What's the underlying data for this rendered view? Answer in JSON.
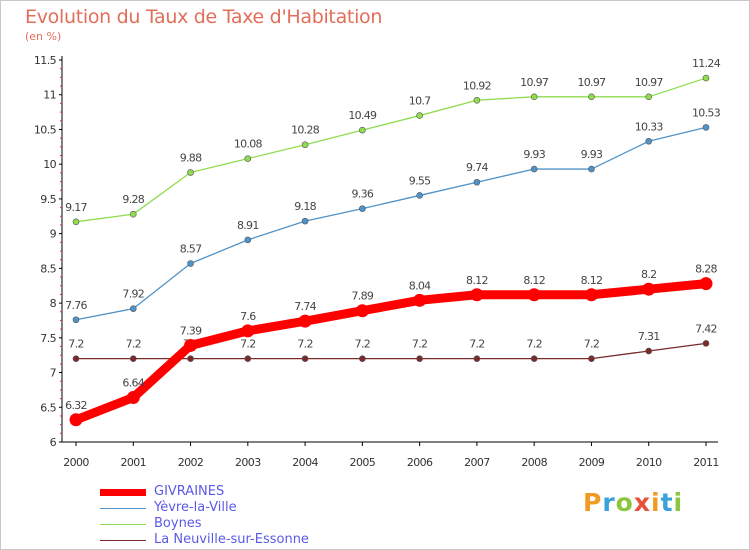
{
  "header": {
    "title": "Evolution du Taux de Taxe d'Habitation",
    "subtitle": "(en %)"
  },
  "brand": {
    "text": "Proxiti",
    "colors": [
      "#f29b24",
      "#3ba1d9",
      "#8cc63f",
      "#e84e3a",
      "#f29b24",
      "#3ba1d9",
      "#8cc63f"
    ]
  },
  "chart_data": {
    "type": "line",
    "x": [
      "2000",
      "2001",
      "2002",
      "2003",
      "2004",
      "2005",
      "2006",
      "2007",
      "2008",
      "2009",
      "2010",
      "2011"
    ],
    "ylim": [
      6,
      11.5
    ],
    "yticks": [
      "6",
      "6.5",
      "7",
      "7.5",
      "8",
      "8.5",
      "9",
      "9.5",
      "10",
      "10.5",
      "11",
      "11.5"
    ],
    "grid": false,
    "legend_position": "bottom-left",
    "series": [
      {
        "name": "GIVRAINES",
        "color": "#ff0000",
        "emphasis": true,
        "values": [
          6.32,
          6.64,
          7.39,
          7.6,
          7.74,
          7.89,
          8.04,
          8.12,
          8.12,
          8.12,
          8.2,
          8.28
        ],
        "labels": [
          "6.32",
          "6.64",
          "7.39",
          "7.6",
          "7.74",
          "7.89",
          "8.04",
          "8.12",
          "8.12",
          "8.12",
          "8.2",
          "8.28"
        ]
      },
      {
        "name": "Yèvre-la-Ville",
        "color": "#4f93c8",
        "values": [
          7.76,
          7.92,
          8.57,
          8.91,
          9.18,
          9.36,
          9.55,
          9.74,
          9.93,
          9.93,
          10.33,
          10.53
        ],
        "labels": [
          "7.76",
          "7.92",
          "8.57",
          "8.91",
          "9.18",
          "9.36",
          "9.55",
          "9.74",
          "9.93",
          "9.93",
          "10.33",
          "10.53"
        ]
      },
      {
        "name": "Boynes",
        "color": "#8fdc4e",
        "values": [
          9.17,
          9.28,
          9.88,
          10.08,
          10.28,
          10.49,
          10.7,
          10.92,
          10.97,
          10.97,
          10.97,
          11.24
        ],
        "labels": [
          "9.17",
          "9.28",
          "9.88",
          "10.08",
          "10.28",
          "10.49",
          "10.7",
          "10.92",
          "10.97",
          "10.97",
          "10.97",
          "11.24"
        ]
      },
      {
        "name": "La Neuville-sur-Essonne",
        "color": "#7a2a2a",
        "values": [
          7.2,
          7.2,
          7.2,
          7.2,
          7.2,
          7.2,
          7.2,
          7.2,
          7.2,
          7.2,
          7.31,
          7.42
        ],
        "labels": [
          "7.2",
          "7.2",
          "7.2",
          "7.2",
          "7.2",
          "7.2",
          "7.2",
          "7.2",
          "7.2",
          "7.2",
          "7.31",
          "7.42"
        ]
      }
    ]
  }
}
